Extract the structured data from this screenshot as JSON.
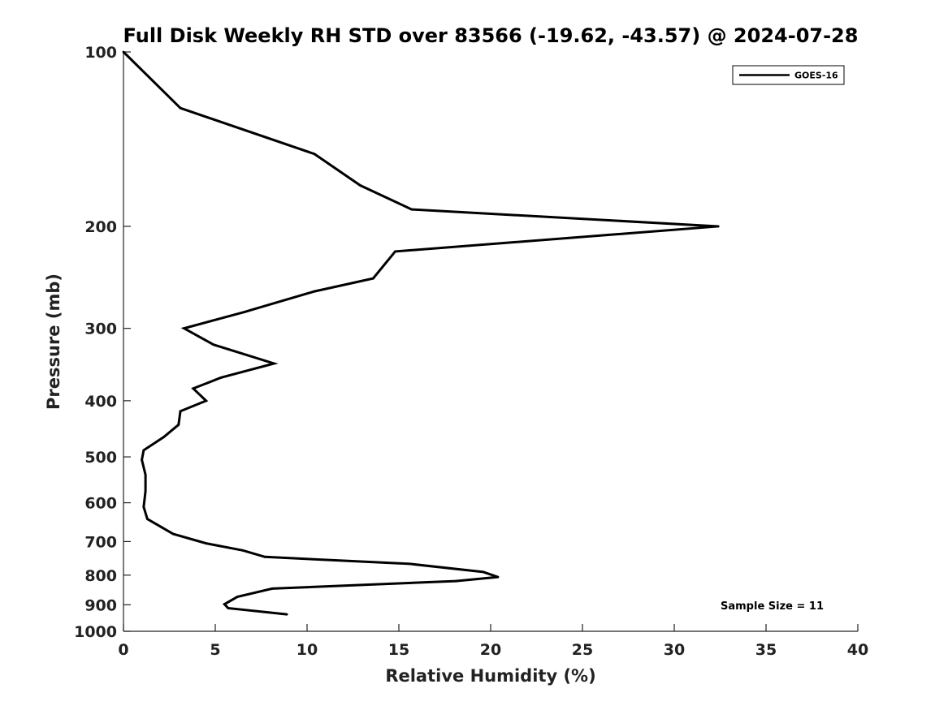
{
  "chart_data": {
    "type": "line",
    "title": "Full Disk Weekly RH STD over 83566 (-19.62, -43.57) @ 2024-07-28",
    "xlabel": "Relative Humidity (%)",
    "ylabel": "Pressure (mb)",
    "xlim": [
      0,
      40
    ],
    "ylim": [
      1000,
      100
    ],
    "y_scale": "log",
    "grid": false,
    "legend_position": "top-right",
    "x_ticks": [
      "0",
      "5",
      "10",
      "15",
      "20",
      "25",
      "30",
      "35",
      "40"
    ],
    "y_ticks": [
      "100",
      "200",
      "300",
      "400",
      "500",
      "600",
      "700",
      "800",
      "900",
      "1000"
    ],
    "series": [
      {
        "name": "GOES-16",
        "color": "#000000",
        "points": [
          [
            0.0,
            100
          ],
          [
            3.1,
            125
          ],
          [
            10.4,
            150
          ],
          [
            12.9,
            170
          ],
          [
            15.7,
            187
          ],
          [
            32.4,
            200
          ],
          [
            14.8,
            221
          ],
          [
            13.6,
            246
          ],
          [
            10.4,
            259
          ],
          [
            6.6,
            281
          ],
          [
            3.3,
            300
          ],
          [
            4.9,
            320
          ],
          [
            8.2,
            345
          ],
          [
            5.3,
            365
          ],
          [
            3.8,
            381
          ],
          [
            4.5,
            400
          ],
          [
            3.1,
            417
          ],
          [
            3.0,
            440
          ],
          [
            2.2,
            462
          ],
          [
            1.1,
            487
          ],
          [
            1.0,
            506
          ],
          [
            1.2,
            537
          ],
          [
            1.2,
            573
          ],
          [
            1.1,
            610
          ],
          [
            1.3,
            640
          ],
          [
            2.7,
            679
          ],
          [
            4.5,
            705
          ],
          [
            6.5,
            725
          ],
          [
            7.7,
            744
          ],
          [
            15.6,
            765
          ],
          [
            19.6,
            790
          ],
          [
            20.4,
            806
          ],
          [
            18.1,
            819
          ],
          [
            8.1,
            844
          ],
          [
            6.2,
            872
          ],
          [
            5.5,
            898
          ],
          [
            5.7,
            912
          ],
          [
            8.9,
            935
          ]
        ]
      }
    ],
    "annotations": [
      "Sample Size = 11"
    ]
  }
}
